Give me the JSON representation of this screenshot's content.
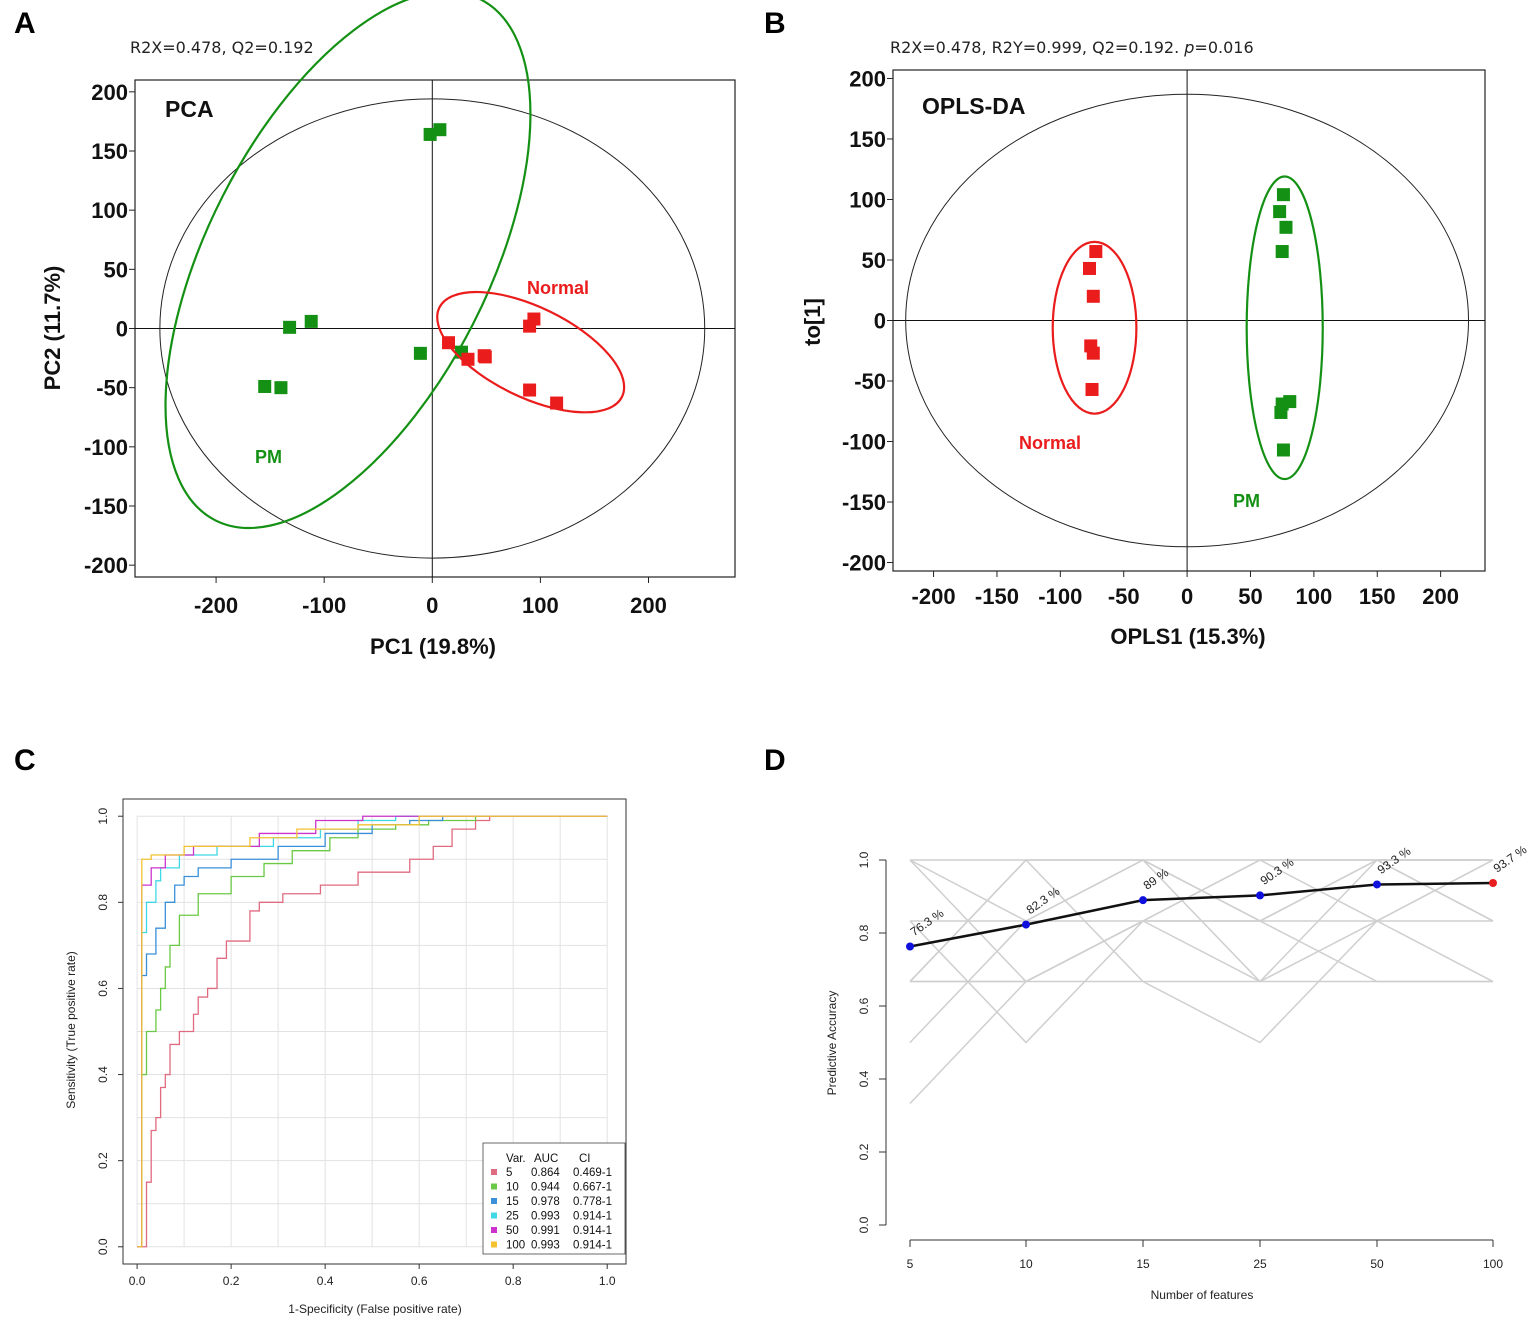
{
  "chart_data": [
    {
      "panel": "A",
      "type": "scatter",
      "title": "PCA",
      "stats": "R2X=0.478,   Q2=0.192",
      "xlabel": "PC1 (19.8%)",
      "ylabel": "PC2 (11.7%)",
      "xlim": [
        -275,
        280
      ],
      "ylim": [
        -210,
        210
      ],
      "xticks": [
        -200,
        -100,
        0,
        100,
        200
      ],
      "yticks": [
        200,
        150,
        100,
        50,
        0,
        -50,
        -100,
        -150,
        -200
      ],
      "hotelling_ellipse": {
        "cx": 0,
        "cy": 0,
        "rx": 252,
        "ry": 194
      },
      "series": [
        {
          "name": "PM",
          "color": "#149114",
          "points": [
            [
              -2,
              164
            ],
            [
              7,
              168
            ],
            [
              -132,
              1
            ],
            [
              -112,
              6
            ],
            [
              -155,
              -49
            ],
            [
              -140,
              -50
            ],
            [
              -11,
              -21
            ],
            [
              27,
              -20
            ]
          ],
          "ellipse": {
            "cx": -78,
            "cy": 58,
            "rx": 130,
            "ry": 247,
            "angle": 27
          }
        },
        {
          "name": "Normal",
          "color": "#ea1c1c",
          "points": [
            [
              90,
              2
            ],
            [
              94,
              8
            ],
            [
              15,
              -12
            ],
            [
              33,
              -26
            ],
            [
              48,
              -23
            ],
            [
              49,
              -24
            ],
            [
              90,
              -52
            ],
            [
              115,
              -63
            ]
          ],
          "ellipse": {
            "cx": 91,
            "cy": -20,
            "rx": 94,
            "ry": 38,
            "angle": 26
          }
        }
      ]
    },
    {
      "panel": "B",
      "type": "scatter",
      "title": "OPLS-DA",
      "stats_prefix": "R2X=0.478, R2Y=0.999, Q2=0.192. ",
      "stats_p": "p",
      "stats_suffix": "=0.016",
      "xlabel": "OPLS1 (15.3%)",
      "ylabel": "to[1]",
      "xlim": [
        -232,
        235
      ],
      "ylim": [
        -207,
        207
      ],
      "xticks": [
        -200,
        -150,
        -100,
        -50,
        0,
        50,
        100,
        150,
        200
      ],
      "yticks": [
        200,
        150,
        100,
        50,
        0,
        -50,
        -100,
        -150,
        -200
      ],
      "hotelling_ellipse": {
        "cx": 0,
        "cy": 0,
        "rx": 222,
        "ry": 187
      },
      "series": [
        {
          "name": "Normal",
          "color": "#ea1c1c",
          "points": [
            [
              -72,
              57
            ],
            [
              -77,
              43
            ],
            [
              -74,
              20
            ],
            [
              -76,
              -21
            ],
            [
              -74,
              -27
            ],
            [
              -75,
              -57
            ]
          ],
          "ellipse": {
            "cx": -73,
            "cy": -6,
            "rx": 33,
            "ry": 71,
            "angle": 0
          }
        },
        {
          "name": "PM",
          "color": "#149114",
          "points": [
            [
              76,
              104
            ],
            [
              73,
              90
            ],
            [
              78,
              77
            ],
            [
              75,
              57
            ],
            [
              81,
              -67
            ],
            [
              75,
              -69
            ],
            [
              74,
              -76
            ],
            [
              76,
              -107
            ]
          ],
          "ellipse": {
            "cx": 77,
            "cy": -6,
            "rx": 30,
            "ry": 125,
            "angle": 0
          }
        }
      ]
    },
    {
      "panel": "C",
      "type": "line",
      "xlabel": "1-Specificity (False positive rate)",
      "ylabel": "Sensitivity (True positive rate)",
      "xlim": [
        -0.03,
        1.04
      ],
      "ylim": [
        -0.04,
        1.04
      ],
      "xticks": [
        "0.0",
        "0.2",
        "0.4",
        "0.6",
        "0.8",
        "1.0"
      ],
      "yticks": [
        "0.0",
        "0.2",
        "0.4",
        "0.6",
        "0.8",
        "1.0"
      ],
      "legend_header": [
        "Var.",
        "AUC",
        "CI"
      ],
      "legend": [
        {
          "var": "5",
          "auc": "0.864",
          "ci": "0.469-1",
          "color": "#e06b80"
        },
        {
          "var": "10",
          "auc": "0.944",
          "ci": "0.667-1",
          "color": "#6ac944"
        },
        {
          "var": "15",
          "auc": "0.978",
          "ci": "0.778-1",
          "color": "#3a90d8"
        },
        {
          "var": "25",
          "auc": "0.993",
          "ci": "0.914-1",
          "color": "#3fd8e6"
        },
        {
          "var": "50",
          "auc": "0.991",
          "ci": "0.914-1",
          "color": "#cc33cc"
        },
        {
          "var": "100",
          "auc": "0.993",
          "ci": "0.914-1",
          "color": "#f2c230"
        }
      ],
      "series": [
        {
          "name": "5",
          "points": [
            [
              0.0,
              0.0
            ],
            [
              0.02,
              0.05
            ],
            [
              0.02,
              0.15
            ],
            [
              0.03,
              0.2
            ],
            [
              0.03,
              0.27
            ],
            [
              0.04,
              0.3
            ],
            [
              0.05,
              0.37
            ],
            [
              0.06,
              0.4
            ],
            [
              0.07,
              0.47
            ],
            [
              0.09,
              0.5
            ],
            [
              0.12,
              0.54
            ],
            [
              0.13,
              0.58
            ],
            [
              0.15,
              0.6
            ],
            [
              0.17,
              0.67
            ],
            [
              0.19,
              0.71
            ],
            [
              0.24,
              0.78
            ],
            [
              0.26,
              0.8
            ],
            [
              0.31,
              0.82
            ],
            [
              0.39,
              0.84
            ],
            [
              0.47,
              0.87
            ],
            [
              0.53,
              0.87
            ],
            [
              0.58,
              0.9
            ],
            [
              0.63,
              0.93
            ],
            [
              0.67,
              0.97
            ],
            [
              0.72,
              0.99
            ],
            [
              0.75,
              1.0
            ],
            [
              1.0,
              1.0
            ]
          ]
        },
        {
          "name": "10",
          "points": [
            [
              0.0,
              0.0
            ],
            [
              0.01,
              0.4
            ],
            [
              0.02,
              0.5
            ],
            [
              0.04,
              0.55
            ],
            [
              0.05,
              0.6
            ],
            [
              0.06,
              0.65
            ],
            [
              0.07,
              0.7
            ],
            [
              0.09,
              0.77
            ],
            [
              0.13,
              0.82
            ],
            [
              0.2,
              0.86
            ],
            [
              0.27,
              0.89
            ],
            [
              0.33,
              0.92
            ],
            [
              0.41,
              0.95
            ],
            [
              0.47,
              0.97
            ],
            [
              0.55,
              0.98
            ],
            [
              0.62,
              0.99
            ],
            [
              0.72,
              1.0
            ],
            [
              1.0,
              1.0
            ]
          ]
        },
        {
          "name": "15",
          "points": [
            [
              0.0,
              0.0
            ],
            [
              0.01,
              0.63
            ],
            [
              0.02,
              0.68
            ],
            [
              0.04,
              0.74
            ],
            [
              0.06,
              0.8
            ],
            [
              0.08,
              0.84
            ],
            [
              0.1,
              0.86
            ],
            [
              0.13,
              0.88
            ],
            [
              0.2,
              0.9
            ],
            [
              0.3,
              0.93
            ],
            [
              0.4,
              0.96
            ],
            [
              0.5,
              0.98
            ],
            [
              0.58,
              0.99
            ],
            [
              0.65,
              1.0
            ],
            [
              1.0,
              1.0
            ]
          ]
        },
        {
          "name": "25",
          "points": [
            [
              0.0,
              0.0
            ],
            [
              0.01,
              0.73
            ],
            [
              0.02,
              0.8
            ],
            [
              0.04,
              0.85
            ],
            [
              0.05,
              0.88
            ],
            [
              0.09,
              0.91
            ],
            [
              0.17,
              0.93
            ],
            [
              0.29,
              0.95
            ],
            [
              0.39,
              0.97
            ],
            [
              0.47,
              0.99
            ],
            [
              0.55,
              1.0
            ],
            [
              1.0,
              1.0
            ]
          ]
        },
        {
          "name": "50",
          "points": [
            [
              0.0,
              0.0
            ],
            [
              0.01,
              0.84
            ],
            [
              0.03,
              0.88
            ],
            [
              0.06,
              0.91
            ],
            [
              0.12,
              0.93
            ],
            [
              0.26,
              0.96
            ],
            [
              0.38,
              0.99
            ],
            [
              0.48,
              1.0
            ],
            [
              1.0,
              1.0
            ]
          ]
        },
        {
          "name": "100",
          "points": [
            [
              0.0,
              0.0
            ],
            [
              0.01,
              0.9
            ],
            [
              0.03,
              0.91
            ],
            [
              0.1,
              0.93
            ],
            [
              0.24,
              0.95
            ],
            [
              0.34,
              0.97
            ],
            [
              0.47,
              0.98
            ],
            [
              0.6,
              1.0
            ],
            [
              1.0,
              1.0
            ]
          ]
        }
      ]
    },
    {
      "panel": "D",
      "type": "line",
      "xlabel": "Number of features",
      "ylabel": "Predictive Accuracy",
      "ylim": [
        0.0,
        1.0
      ],
      "categories": [
        "5",
        "10",
        "15",
        "25",
        "50",
        "100"
      ],
      "yticks": [
        "0.0",
        "0.2",
        "0.4",
        "0.6",
        "0.8",
        "1.0"
      ],
      "values": [
        0.763,
        0.823,
        0.89,
        0.903,
        0.933,
        0.937
      ],
      "value_labels": [
        "76.3 %",
        "82.3 %",
        "89 %",
        "90.3 %",
        "93.3 %",
        "93.7 %"
      ],
      "best_index": 5,
      "marker_color": "#1010dd",
      "best_color": "#e61e1e",
      "background_runs": [
        [
          1.0,
          0.667,
          0.833,
          1.0,
          0.833,
          0.667
        ],
        [
          0.5,
          0.833,
          1.0,
          0.833,
          1.0,
          1.0
        ],
        [
          0.667,
          1.0,
          0.667,
          0.5,
          0.833,
          1.0
        ],
        [
          0.333,
          0.667,
          0.833,
          1.0,
          1.0,
          0.833
        ],
        [
          0.833,
          0.5,
          0.833,
          0.667,
          1.0,
          1.0
        ],
        [
          0.667,
          1.0,
          1.0,
          0.833,
          0.667,
          0.667
        ],
        [
          1.0,
          0.833,
          1.0,
          0.667,
          0.833,
          1.0
        ],
        [
          0.667,
          0.667,
          0.833,
          0.833,
          1.0,
          0.833
        ]
      ]
    }
  ],
  "panels": {
    "a": "A",
    "b": "B",
    "c": "C",
    "d": "D"
  }
}
